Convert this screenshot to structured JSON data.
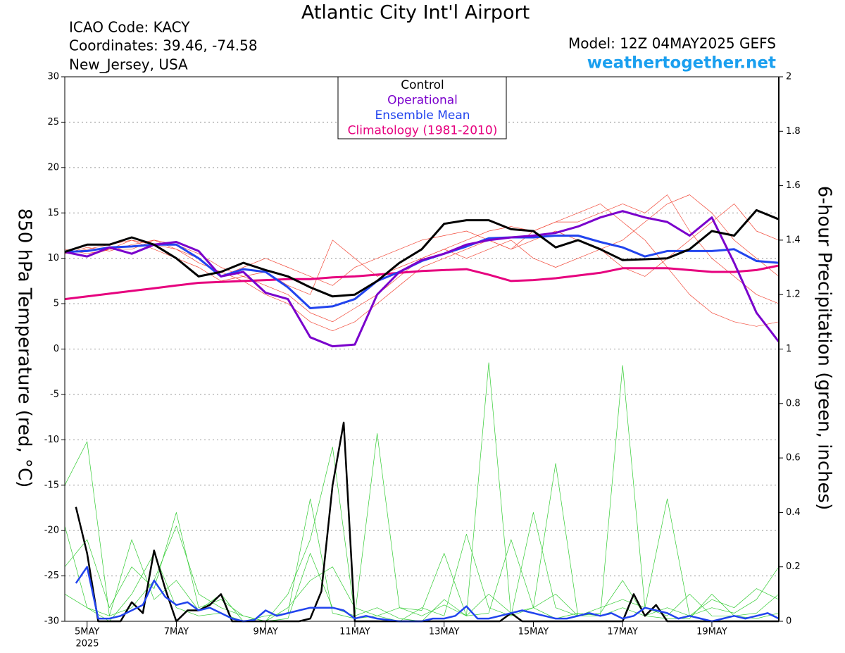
{
  "chart_data": {
    "type": "line",
    "title": "Atlantic City Int'l Airport",
    "header_left": [
      "ICAO Code: KACY",
      "Coordinates: 39.46, -74.58",
      "New_Jersey, USA"
    ],
    "header_right": [
      "Model: 12Z 04MAY2025 GEFS",
      "weathertogether.net"
    ],
    "ylabel": "850 hPa Temperature (red, °C)",
    "y2label": "6-hour Precipitation (green, inches)",
    "x_sublabel": "2025",
    "xlim": [
      0,
      384
    ],
    "xticks": [
      {
        "value": 12,
        "label": "5MAY"
      },
      {
        "value": 60,
        "label": "7MAY"
      },
      {
        "value": 108,
        "label": "9MAY"
      },
      {
        "value": 156,
        "label": "11MAY"
      },
      {
        "value": 204,
        "label": "13MAY"
      },
      {
        "value": 252,
        "label": "15MAY"
      },
      {
        "value": 300,
        "label": "17MAY"
      },
      {
        "value": 348,
        "label": "19MAY"
      }
    ],
    "ylim": [
      -30,
      30
    ],
    "yticks": [
      -30,
      -25,
      -20,
      -15,
      -10,
      -5,
      0,
      5,
      10,
      15,
      20,
      25,
      30
    ],
    "y2lim": [
      0,
      2
    ],
    "y2ticks": [
      0,
      0.2,
      0.4,
      0.6,
      0.8,
      1,
      1.2,
      1.4,
      1.6,
      1.8,
      2
    ],
    "grid": true,
    "x": [
      0,
      12,
      24,
      36,
      48,
      60,
      72,
      84,
      96,
      108,
      120,
      132,
      144,
      156,
      168,
      180,
      192,
      204,
      216,
      228,
      240,
      252,
      264,
      276,
      288,
      300,
      312,
      324,
      336,
      348,
      360,
      372,
      384
    ],
    "series": [
      {
        "color": "#f24a3a",
        "width": 0.7,
        "values": [
          10.5,
          11,
          11.5,
          12,
          11,
          10,
          9,
          7.5,
          8,
          7,
          6,
          4,
          3,
          4.5,
          6,
          8,
          10,
          11,
          12,
          13,
          13.5,
          13,
          14,
          14,
          15,
          16,
          15,
          17,
          13,
          10,
          8,
          6,
          5
        ]
      },
      {
        "color": "#f24a3a",
        "width": 0.7,
        "values": [
          11,
          10.5,
          11,
          12,
          11.5,
          11,
          10,
          8,
          9,
          10,
          9,
          8,
          7,
          9,
          10,
          11,
          12,
          12.5,
          13,
          12,
          11,
          12,
          13,
          12,
          11,
          9,
          8,
          10,
          12,
          14,
          16,
          13,
          12
        ]
      },
      {
        "color": "#f24a3a",
        "width": 0.7,
        "values": [
          10.5,
          11.2,
          10.8,
          11.5,
          12,
          11,
          9.5,
          8.5,
          7.5,
          6,
          5,
          3,
          2,
          3,
          5,
          7,
          9,
          10,
          11,
          12,
          11,
          13,
          14,
          15,
          16,
          14,
          12,
          9,
          6,
          4,
          3,
          2.5,
          3
        ]
      },
      {
        "color": "#f24a3a",
        "width": 0.7,
        "values": [
          10.8,
          10.2,
          11,
          11,
          12,
          11.5,
          10.5,
          9,
          8,
          8.5,
          7,
          6,
          12,
          10,
          8,
          9,
          10,
          11,
          10,
          11,
          12,
          10,
          9,
          10,
          11,
          12,
          14,
          16,
          17,
          15,
          12,
          10,
          8
        ]
      },
      {
        "color": "#33cc33",
        "width": 0.7,
        "axis": "y2",
        "values": [
          0.35,
          0.05,
          0,
          0.1,
          0.25,
          0.05,
          0.02,
          0.03,
          0,
          0,
          0.1,
          0.3,
          0.64,
          0.02,
          0.05,
          0.01,
          0,
          0.08,
          0.02,
          0.95,
          0.02,
          0.05,
          0.01,
          0.03,
          0.02,
          0.05,
          0.02,
          0.01,
          0.01,
          0.1,
          0.02,
          0.01,
          0.03
        ]
      },
      {
        "color": "#33cc33",
        "width": 0.7,
        "axis": "y2",
        "values": [
          0.5,
          0.66,
          0.02,
          0.05,
          0.15,
          0.35,
          0.1,
          0.05,
          0.02,
          0,
          0.01,
          0.25,
          0.05,
          0.02,
          0.69,
          0.05,
          0.02,
          0.06,
          0.02,
          0.1,
          0.03,
          0.05,
          0.58,
          0.02,
          0.02,
          0.94,
          0.05,
          0.02,
          0.1,
          0.02,
          0.02,
          0.03,
          0.1
        ]
      },
      {
        "color": "#33cc33",
        "width": 0.7,
        "axis": "y2",
        "values": [
          0.2,
          0.3,
          0.05,
          0.2,
          0.12,
          0.4,
          0.05,
          0.08,
          0.02,
          0,
          0.05,
          0.15,
          0.2,
          0.05,
          0.02,
          0,
          0.05,
          0.02,
          0.32,
          0.05,
          0.02,
          0.4,
          0.05,
          0.02,
          0.05,
          0.08,
          0.05,
          0.45,
          0.02,
          0.05,
          0.03,
          0.08,
          0.2
        ]
      },
      {
        "color": "#33cc33",
        "width": 0.7,
        "axis": "y2",
        "values": [
          0.1,
          0.05,
          0.02,
          0.3,
          0.08,
          0.15,
          0.04,
          0.1,
          0,
          0.02,
          0.03,
          0.45,
          0.03,
          0.01,
          0.02,
          0.05,
          0.04,
          0.25,
          0.02,
          0.03,
          0.3,
          0.05,
          0.1,
          0.02,
          0.03,
          0.15,
          0.02,
          0.05,
          0.02,
          0.08,
          0.05,
          0.12,
          0.08
        ]
      },
      {
        "color": "#000000",
        "width": 2.5,
        "axis": "y2",
        "x": [
          6,
          12,
          18,
          24,
          30,
          36,
          42,
          48,
          54,
          60,
          66,
          72,
          78,
          84,
          90,
          96,
          102,
          108,
          114,
          120,
          126,
          132,
          138,
          144,
          150,
          156,
          162,
          168,
          174,
          180,
          186,
          192,
          198,
          204,
          210,
          216,
          222,
          228,
          234,
          240,
          246,
          252,
          258,
          264,
          270,
          276,
          282,
          288,
          294,
          300,
          306,
          312,
          318,
          324,
          330,
          336,
          342,
          348,
          354,
          360,
          366,
          372,
          378,
          384
        ],
        "values": [
          0.42,
          0.25,
          0,
          0,
          0,
          0.07,
          0.03,
          0.26,
          0.12,
          0,
          0.04,
          0.04,
          0.06,
          0.1,
          0,
          0,
          0,
          0,
          0,
          0,
          0,
          0.01,
          0.11,
          0.5,
          0.73,
          0,
          0,
          0,
          0,
          0,
          0,
          0,
          0,
          0,
          0,
          0,
          0,
          0,
          0,
          0.03,
          0,
          0,
          0,
          0,
          0,
          0,
          0,
          0,
          0,
          0,
          0.1,
          0.02,
          0.06,
          0,
          0,
          0,
          0,
          0,
          0,
          0,
          0,
          0,
          0,
          0
        ]
      },
      {
        "color": "#2244ee",
        "width": 2.5,
        "axis": "y2",
        "x": [
          6,
          12,
          18,
          24,
          30,
          36,
          42,
          48,
          54,
          60,
          66,
          72,
          78,
          84,
          90,
          96,
          102,
          108,
          114,
          120,
          126,
          132,
          138,
          144,
          150,
          156,
          162,
          168,
          174,
          180,
          186,
          192,
          198,
          204,
          210,
          216,
          222,
          228,
          234,
          240,
          246,
          252,
          258,
          264,
          270,
          276,
          282,
          288,
          294,
          300,
          306,
          312,
          318,
          324,
          330,
          336,
          342,
          348,
          354,
          360,
          366,
          372,
          378,
          384
        ],
        "values": [
          0.14,
          0.2,
          0.01,
          0.01,
          0.02,
          0.04,
          0.06,
          0.15,
          0.09,
          0.06,
          0.07,
          0.04,
          0.05,
          0.03,
          0.01,
          0,
          0.005,
          0.04,
          0.02,
          0.03,
          0.04,
          0.05,
          0.05,
          0.05,
          0.04,
          0.01,
          0.02,
          0.01,
          0.005,
          0,
          0,
          0,
          0.01,
          0.01,
          0.02,
          0.055,
          0.01,
          0.01,
          0.02,
          0.03,
          0.04,
          0.03,
          0.02,
          0.01,
          0.01,
          0.02,
          0.03,
          0.02,
          0.03,
          0.01,
          0.02,
          0.05,
          0.04,
          0.03,
          0.01,
          0.02,
          0.01,
          0,
          0.01,
          0.02,
          0.01,
          0.02,
          0.03,
          0.01
        ]
      },
      {
        "name": "Climatology (1981-2010)",
        "color": "#e6007e",
        "width": 3,
        "values": [
          5.5,
          5.8,
          6.1,
          6.4,
          6.7,
          7.0,
          7.3,
          7.4,
          7.5,
          7.6,
          7.7,
          7.7,
          7.9,
          8.0,
          8.2,
          8.4,
          8.6,
          8.7,
          8.8,
          8.2,
          7.5,
          7.6,
          7.8,
          8.1,
          8.4,
          8.9,
          8.9,
          8.9,
          8.7,
          8.5,
          8.5,
          8.7,
          9.2
        ]
      },
      {
        "name": "Ensemble Mean",
        "color": "#2244ee",
        "width": 3,
        "values": [
          10.7,
          10.8,
          11.2,
          11.3,
          11.5,
          11.5,
          10,
          8,
          8.8,
          8.5,
          6.8,
          4.5,
          4.7,
          5.5,
          7.5,
          8.5,
          9.7,
          10.5,
          11.3,
          12.2,
          12.3,
          12.3,
          12.5,
          12.5,
          11.8,
          11.2,
          10.2,
          10.8,
          10.8,
          10.8,
          11,
          9.7,
          9.5
        ]
      },
      {
        "name": "Operational",
        "color": "#7a00cc",
        "width": 3,
        "values": [
          10.7,
          10.2,
          11.2,
          10.5,
          11.5,
          11.8,
          10.8,
          8,
          8.5,
          6.2,
          5.5,
          1.3,
          0.3,
          0.5,
          6,
          8.5,
          9.8,
          10.5,
          11.5,
          12,
          12.3,
          12.5,
          12.8,
          13.5,
          14.5,
          15.2,
          14.5,
          14,
          12.5,
          14.5,
          9.5,
          4,
          0.8
        ]
      },
      {
        "name": "Control",
        "color": "#000000",
        "width": 3,
        "values": [
          10.7,
          11.5,
          11.5,
          12.3,
          11.5,
          10,
          8,
          8.5,
          9.5,
          8.7,
          8,
          6.8,
          5.8,
          6,
          7.5,
          9.5,
          11,
          13.8,
          14.2,
          14.2,
          13.2,
          13,
          11.2,
          12,
          11,
          9.8,
          9.9,
          10,
          11,
          13,
          12.5,
          15.3,
          14.3
        ]
      }
    ],
    "legend_order": [
      13,
      12,
      11,
      10
    ]
  }
}
